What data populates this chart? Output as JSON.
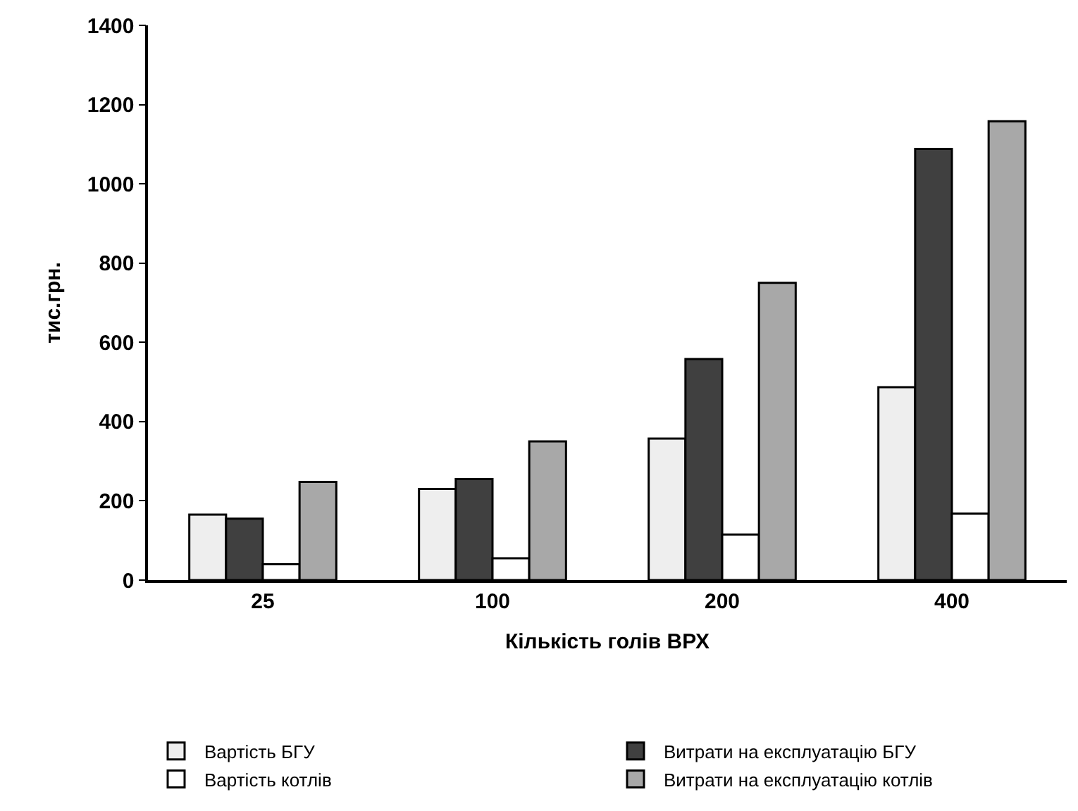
{
  "chart_data": {
    "type": "bar",
    "xlabel": "Кількість голів ВРХ",
    "ylabel": "тис.грн.",
    "categories": [
      "25",
      "100",
      "200",
      "400"
    ],
    "series": [
      {
        "name": "Вартість БГУ",
        "color": "#eeeeee",
        "values": [
          165,
          230,
          357,
          487
        ]
      },
      {
        "name": "Витрати на експлуатацію БГУ",
        "color": "#404040",
        "values": [
          155,
          255,
          558,
          1088
        ]
      },
      {
        "name": "Вартість котлів",
        "color": "#ffffff",
        "values": [
          40,
          55,
          115,
          168
        ]
      },
      {
        "name": "Витрати на експлуатацію котлів",
        "color": "#a8a8a8",
        "values": [
          248,
          350,
          750,
          1158
        ]
      }
    ],
    "ylim": [
      0,
      1400
    ],
    "yticks": [
      0,
      200,
      400,
      600,
      800,
      1000,
      1200,
      1400
    ],
    "legend": "bottom"
  }
}
